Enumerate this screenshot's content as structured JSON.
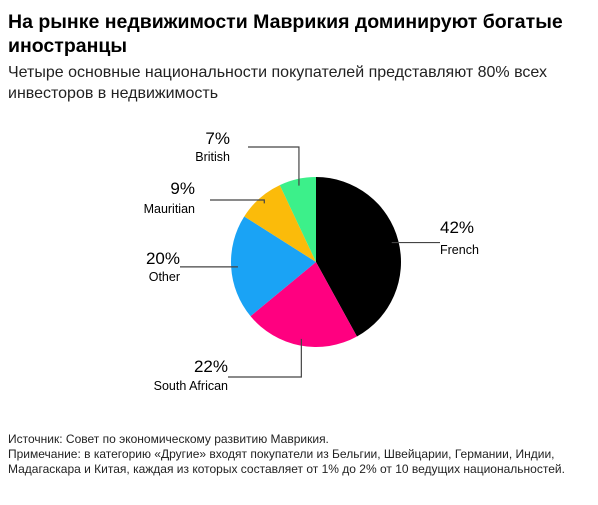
{
  "title": "На рынке недвижимости Маврикия доминируют богатые иностранцы",
  "subtitle": "Четыре основные национальности покупателей представляют 80% всех инвесторов в недвижимость",
  "chart_data": {
    "type": "pie",
    "slices": [
      {
        "label": "French",
        "value": 42,
        "value_label": "42%",
        "color": "#000000"
      },
      {
        "label": "South African",
        "value": 22,
        "value_label": "22%",
        "color": "#ff0080"
      },
      {
        "label": "Other",
        "value": 20,
        "value_label": "20%",
        "color": "#1aa3f5"
      },
      {
        "label": "Mauritian",
        "value": 9,
        "value_label": "9%",
        "color": "#fbbb0a"
      },
      {
        "label": "British",
        "value": 7,
        "value_label": "7%",
        "color": "#3cf08a"
      }
    ]
  },
  "notes": {
    "source": "Источник: Совет по экономическому развитию Маврикия.",
    "note": "Примечание: в категорию «Другие» входят покупатели из Бельгии, Швейцарии, Германии, Индии, Мадагаскара и Китая, каждая из которых составляет от 1% до 2% от 10 ведущих национальностей."
  }
}
